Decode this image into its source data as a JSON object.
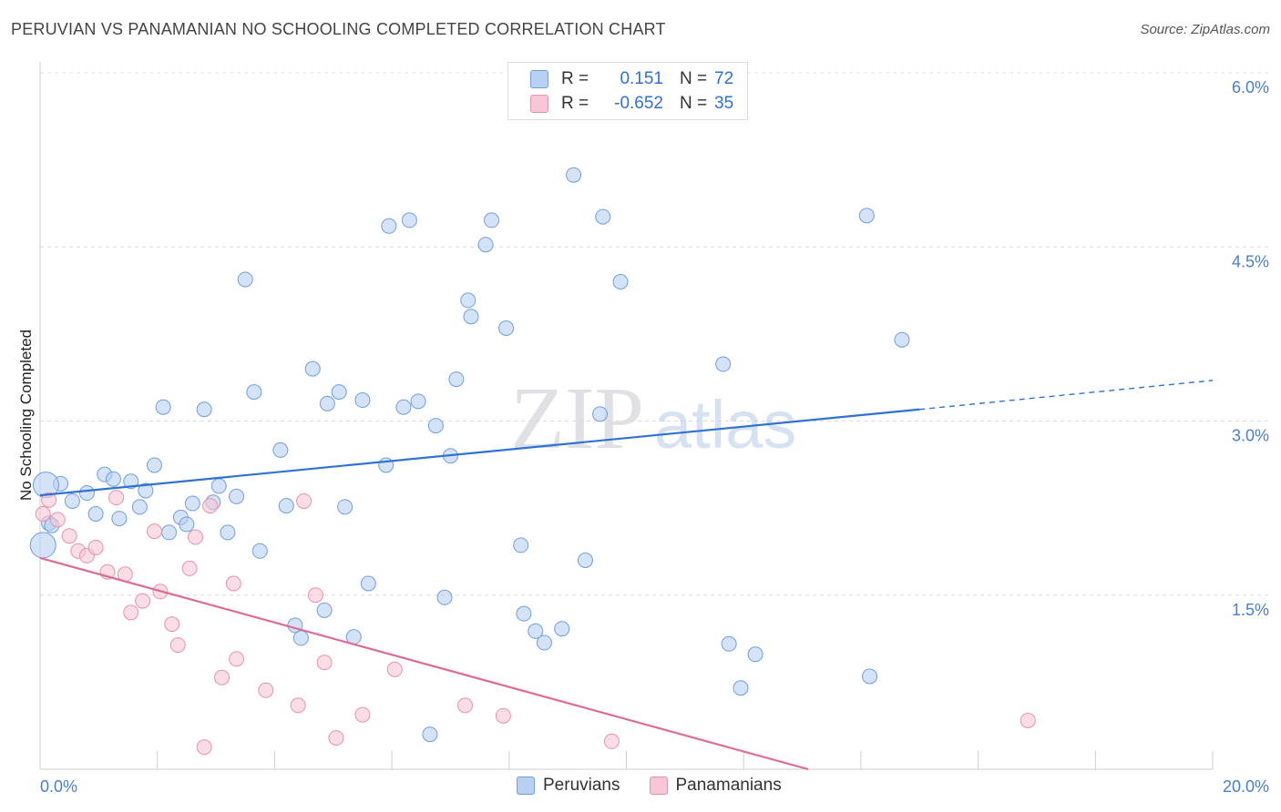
{
  "header": {
    "title": "PERUVIAN VS PANAMANIAN NO SCHOOLING COMPLETED CORRELATION CHART",
    "source": "Source: ZipAtlas.com"
  },
  "watermark": {
    "zip": "ZIP",
    "atlas": "atlas"
  },
  "legend": {
    "rows": [
      {
        "r_label": "R =",
        "r_value": "0.151",
        "n_label": "N =",
        "n_value": "72",
        "color": "#b8d1f3"
      },
      {
        "r_label": "R =",
        "r_value": "-0.652",
        "n_label": "N =",
        "n_value": "35",
        "color": "#f8c6d6"
      }
    ]
  },
  "bottom_legend": {
    "items": [
      "Peruvians",
      "Panamanians"
    ]
  },
  "chart_data": {
    "type": "scatter",
    "ylabel": "No Schooling Completed",
    "xlim": [
      0,
      20
    ],
    "ylim": [
      0,
      6.0
    ],
    "x_tick_labels": [
      "0.0%",
      "20.0%"
    ],
    "y_ticks": [
      1.5,
      3.0,
      4.5,
      6.0
    ],
    "y_tick_labels": [
      "1.5%",
      "3.0%",
      "4.5%",
      "6.0%"
    ],
    "grid": "horizontal dashed",
    "legend_position": "top-center",
    "series": [
      {
        "name": "Peruvians",
        "color": "#b8d1f3",
        "stroke": "#6f9fdc",
        "trend": {
          "x0": 0,
          "y0": 2.36,
          "x1": 15.0,
          "y1": 3.1,
          "dash_to_x": 20.0,
          "dash_to_y": 3.35,
          "color": "#2f72d3"
        },
        "points": [
          [
            0.15,
            2.12
          ],
          [
            0.35,
            2.46
          ],
          [
            0.55,
            2.31
          ],
          [
            0.8,
            2.38
          ],
          [
            0.95,
            2.2
          ],
          [
            1.1,
            2.54
          ],
          [
            1.25,
            2.5
          ],
          [
            1.35,
            2.16
          ],
          [
            1.55,
            2.48
          ],
          [
            1.7,
            2.26
          ],
          [
            1.8,
            2.4
          ],
          [
            1.95,
            2.62
          ],
          [
            2.1,
            3.12
          ],
          [
            2.2,
            2.04
          ],
          [
            2.4,
            2.17
          ],
          [
            2.5,
            2.11
          ],
          [
            2.6,
            2.29
          ],
          [
            2.8,
            3.1
          ],
          [
            2.95,
            2.3
          ],
          [
            3.05,
            2.44
          ],
          [
            3.2,
            2.04
          ],
          [
            3.35,
            2.35
          ],
          [
            3.5,
            4.22
          ],
          [
            3.65,
            3.25
          ],
          [
            3.75,
            1.88
          ],
          [
            4.1,
            2.75
          ],
          [
            4.2,
            2.27
          ],
          [
            4.35,
            1.24
          ],
          [
            4.45,
            1.13
          ],
          [
            4.65,
            3.45
          ],
          [
            4.85,
            1.37
          ],
          [
            4.9,
            3.15
          ],
          [
            5.1,
            3.25
          ],
          [
            5.2,
            2.26
          ],
          [
            5.35,
            1.14
          ],
          [
            5.5,
            3.18
          ],
          [
            5.6,
            1.6
          ],
          [
            5.9,
            2.62
          ],
          [
            5.95,
            4.68
          ],
          [
            6.2,
            3.12
          ],
          [
            6.3,
            4.73
          ],
          [
            6.45,
            3.17
          ],
          [
            6.65,
            0.3
          ],
          [
            6.75,
            2.96
          ],
          [
            6.9,
            1.48
          ],
          [
            7.0,
            2.7
          ],
          [
            7.1,
            3.36
          ],
          [
            7.3,
            4.04
          ],
          [
            7.35,
            3.9
          ],
          [
            7.6,
            4.52
          ],
          [
            7.7,
            4.73
          ],
          [
            7.95,
            3.8
          ],
          [
            8.2,
            1.93
          ],
          [
            8.25,
            1.34
          ],
          [
            8.45,
            1.19
          ],
          [
            8.6,
            1.09
          ],
          [
            8.9,
            1.21
          ],
          [
            9.1,
            5.12
          ],
          [
            9.3,
            1.8
          ],
          [
            9.55,
            3.06
          ],
          [
            9.6,
            4.76
          ],
          [
            9.9,
            4.2
          ],
          [
            11.65,
            3.49
          ],
          [
            11.75,
            1.08
          ],
          [
            11.95,
            0.7
          ],
          [
            12.2,
            0.99
          ],
          [
            14.1,
            4.77
          ],
          [
            14.15,
            0.8
          ],
          [
            14.7,
            3.7
          ],
          [
            0.1,
            2.45
          ],
          [
            0.2,
            2.1
          ],
          [
            0.05,
            1.93
          ]
        ]
      },
      {
        "name": "Panamanians",
        "color": "#f8c6d6",
        "stroke": "#e792ad",
        "trend": {
          "x0": 0,
          "y0": 1.82,
          "x1": 13.1,
          "y1": 0.0,
          "color": "#df6b95"
        },
        "points": [
          [
            0.05,
            2.2
          ],
          [
            0.15,
            2.32
          ],
          [
            0.3,
            2.15
          ],
          [
            0.5,
            2.01
          ],
          [
            0.65,
            1.88
          ],
          [
            0.8,
            1.84
          ],
          [
            0.95,
            1.91
          ],
          [
            1.15,
            1.7
          ],
          [
            1.3,
            2.34
          ],
          [
            1.45,
            1.68
          ],
          [
            1.55,
            1.35
          ],
          [
            1.75,
            1.45
          ],
          [
            1.95,
            2.05
          ],
          [
            2.05,
            1.53
          ],
          [
            2.25,
            1.25
          ],
          [
            2.35,
            1.07
          ],
          [
            2.55,
            1.73
          ],
          [
            2.65,
            2.0
          ],
          [
            2.8,
            0.19
          ],
          [
            2.9,
            2.27
          ],
          [
            3.1,
            0.79
          ],
          [
            3.3,
            1.6
          ],
          [
            3.35,
            0.95
          ],
          [
            3.85,
            0.68
          ],
          [
            4.4,
            0.55
          ],
          [
            4.5,
            2.31
          ],
          [
            4.7,
            1.5
          ],
          [
            4.85,
            0.92
          ],
          [
            5.05,
            0.27
          ],
          [
            5.5,
            0.47
          ],
          [
            6.05,
            0.86
          ],
          [
            7.25,
            0.55
          ],
          [
            7.9,
            0.46
          ],
          [
            9.75,
            0.24
          ],
          [
            16.85,
            0.42
          ]
        ]
      }
    ]
  }
}
